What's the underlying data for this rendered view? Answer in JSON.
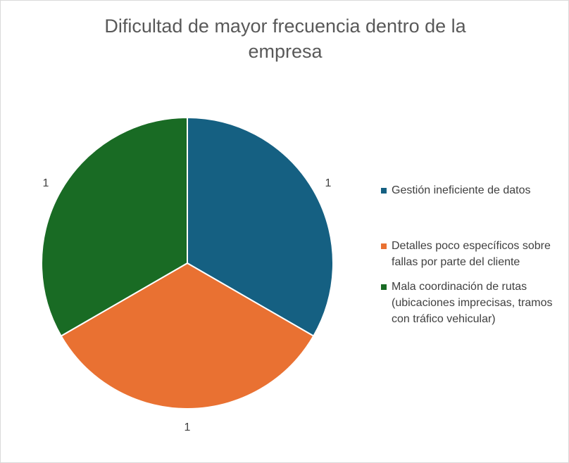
{
  "chart_data": {
    "type": "pie",
    "title": "Dificultad de mayor frecuencia dentro de la empresa",
    "categories": [
      "Gestión ineficiente de datos",
      "Detalles poco específicos sobre fallas por parte del cliente",
      "Mala coordinación de rutas (ubicaciones imprecisas, tramos con tráfico vehicular)"
    ],
    "values": [
      1,
      1,
      1
    ],
    "data_labels": [
      "1",
      "1",
      "1"
    ],
    "colors": [
      "#156082",
      "#E97132",
      "#196B24"
    ],
    "legend_position": "right"
  }
}
